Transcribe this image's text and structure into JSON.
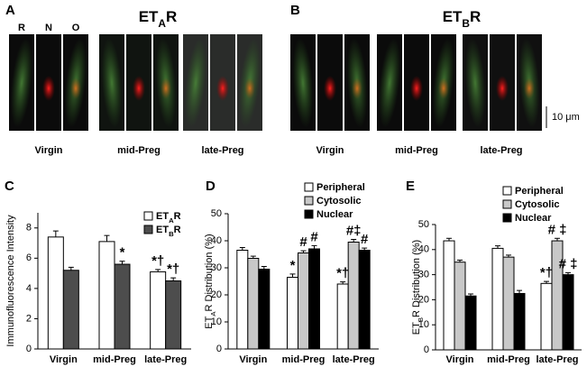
{
  "figure": {
    "panels": [
      {
        "label": "A",
        "title": "ETAR",
        "channels": [
          "R",
          "N",
          "O"
        ],
        "conditions": [
          "Virgin",
          "mid-Preg",
          "late-Preg"
        ]
      },
      {
        "label": "B",
        "title": "ETBR",
        "conditions": [
          "Virgin",
          "mid-Preg",
          "late-Preg"
        ]
      }
    ],
    "scale_bar": "10 μm"
  },
  "chart_data": [
    {
      "type": "bar",
      "label": "C",
      "y_label": "Immunofluorescence Intensity",
      "categories": [
        "Virgin",
        "mid-Preg",
        "late-Preg"
      ],
      "series": [
        {
          "name": "ETAR",
          "color": "#ffffff",
          "values": [
            7.4,
            7.1,
            5.1
          ],
          "errors": [
            0.4,
            0.4,
            0.15
          ],
          "annotations": [
            null,
            null,
            "*†"
          ]
        },
        {
          "name": "ETBR",
          "color": "#4d4d4d",
          "values": [
            5.2,
            5.6,
            4.5
          ],
          "errors": [
            0.2,
            0.2,
            0.2
          ],
          "annotations": [
            null,
            "*",
            "*†"
          ]
        }
      ],
      "ylim": [
        0,
        9
      ],
      "yticks": [
        0,
        2,
        4,
        6,
        8
      ],
      "legend": "upper right"
    },
    {
      "type": "bar",
      "label": "D",
      "y_label": "ETAR Distribution (%)",
      "categories": [
        "Virgin",
        "mid-Preg",
        "late-Preg"
      ],
      "series": [
        {
          "name": "Peripheral",
          "color": "#ffffff",
          "values": [
            36.5,
            26.5,
            24
          ],
          "errors": [
            1,
            1.2,
            0.8
          ],
          "annotations": [
            null,
            "*",
            "*†"
          ]
        },
        {
          "name": "Cytosolic",
          "color": "#c8c8c8",
          "values": [
            33.5,
            35.5,
            39.5
          ],
          "errors": [
            0.8,
            0.8,
            1
          ],
          "annotations": [
            null,
            "#",
            "#‡"
          ]
        },
        {
          "name": "Nuclear",
          "color": "#000000",
          "values": [
            29.5,
            37,
            36.5
          ],
          "errors": [
            1,
            1.2,
            0.8
          ],
          "annotations": [
            null,
            "#",
            "#"
          ]
        }
      ],
      "ylim": [
        0,
        50
      ],
      "yticks": [
        0,
        10,
        20,
        30,
        40,
        50
      ],
      "legend": "upper right"
    },
    {
      "type": "bar",
      "label": "E",
      "y_label": "ETBR Distribution (%)",
      "categories": [
        "Virgin",
        "mid-Preg",
        "late-Preg"
      ],
      "series": [
        {
          "name": "Peripheral",
          "color": "#ffffff",
          "values": [
            43.5,
            40.5,
            26.5
          ],
          "errors": [
            1,
            1,
            0.8
          ],
          "annotations": [
            null,
            null,
            "*†"
          ]
        },
        {
          "name": "Cytosolic",
          "color": "#c8c8c8",
          "values": [
            35,
            37,
            43.5
          ],
          "errors": [
            0.8,
            0.8,
            1
          ],
          "annotations": [
            null,
            null,
            "# ‡"
          ]
        },
        {
          "name": "Nuclear",
          "color": "#000000",
          "values": [
            21.5,
            22.5,
            30
          ],
          "errors": [
            0.8,
            1.2,
            0.8
          ],
          "annotations": [
            null,
            null,
            "# ‡"
          ]
        }
      ],
      "ylim": [
        0,
        50
      ],
      "yticks": [
        0,
        10,
        20,
        30,
        40,
        50
      ],
      "legend": "upper right"
    }
  ]
}
